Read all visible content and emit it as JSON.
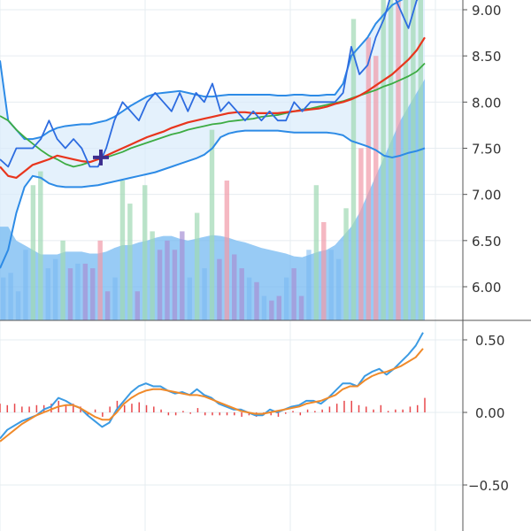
{
  "chart_data": [
    {
      "type": "candlestick-overlay",
      "panel": "price",
      "ylim": [
        5.75,
        9.1
      ],
      "y_ticks": [
        "6.00",
        "6.50",
        "7.00",
        "7.50",
        "8.00",
        "8.50",
        "9.00"
      ],
      "grid": true,
      "price": [
        7.38,
        7.3,
        7.5,
        7.5,
        7.5,
        7.6,
        7.8,
        7.6,
        7.5,
        7.6,
        7.5,
        7.3,
        7.3,
        7.5,
        7.8,
        8.0,
        7.9,
        7.8,
        8.0,
        8.1,
        8.0,
        7.9,
        8.1,
        7.9,
        8.1,
        8.0,
        8.2,
        7.9,
        8.0,
        7.9,
        7.8,
        7.9,
        7.8,
        7.9,
        7.8,
        7.8,
        8.0,
        7.9,
        8.0,
        8.0,
        8.0,
        8.0,
        8.1,
        8.6,
        8.3,
        8.4,
        8.7,
        8.9,
        9.2,
        9.0,
        8.8,
        9.1,
        9.2
      ],
      "ma_slow": [
        7.85,
        7.8,
        7.7,
        7.62,
        7.55,
        7.48,
        7.42,
        7.38,
        7.33,
        7.3,
        7.32,
        7.35,
        7.38,
        7.4,
        7.43,
        7.46,
        7.5,
        7.53,
        7.56,
        7.59,
        7.62,
        7.65,
        7.67,
        7.7,
        7.72,
        7.74,
        7.76,
        7.77,
        7.79,
        7.8,
        7.81,
        7.82,
        7.84,
        7.85,
        7.86,
        7.88,
        7.9,
        7.92,
        7.93,
        7.95,
        7.97,
        7.99,
        8.01,
        8.04,
        8.07,
        8.1,
        8.13,
        8.17,
        8.2,
        8.24,
        8.28,
        8.33,
        8.42
      ],
      "ma_fast": [
        7.3,
        7.2,
        7.18,
        7.25,
        7.32,
        7.35,
        7.38,
        7.42,
        7.4,
        7.38,
        7.36,
        7.35,
        7.38,
        7.42,
        7.46,
        7.5,
        7.54,
        7.58,
        7.62,
        7.65,
        7.68,
        7.72,
        7.75,
        7.78,
        7.8,
        7.82,
        7.84,
        7.86,
        7.88,
        7.89,
        7.89,
        7.88,
        7.88,
        7.88,
        7.88,
        7.89,
        7.9,
        7.91,
        7.92,
        7.93,
        7.95,
        7.98,
        8.0,
        8.03,
        8.07,
        8.12,
        8.18,
        8.24,
        8.3,
        8.38,
        8.46,
        8.56,
        8.7
      ],
      "bb_upper": [
        8.45,
        7.8,
        7.7,
        7.6,
        7.6,
        7.62,
        7.68,
        7.72,
        7.74,
        7.75,
        7.76,
        7.76,
        7.78,
        7.8,
        7.84,
        7.9,
        7.96,
        8.01,
        8.06,
        8.09,
        8.1,
        8.11,
        8.12,
        8.1,
        8.08,
        8.06,
        8.06,
        8.07,
        8.08,
        8.08,
        8.08,
        8.08,
        8.08,
        8.08,
        8.07,
        8.07,
        8.08,
        8.08,
        8.07,
        8.07,
        8.08,
        8.08,
        8.2,
        8.5,
        8.6,
        8.7,
        8.85,
        8.95,
        9.05,
        9.1,
        9.15,
        9.2,
        9.22
      ],
      "bb_lower": [
        6.2,
        6.4,
        6.8,
        7.08,
        7.2,
        7.18,
        7.12,
        7.09,
        7.08,
        7.08,
        7.08,
        7.09,
        7.1,
        7.12,
        7.14,
        7.16,
        7.18,
        7.2,
        7.22,
        7.24,
        7.27,
        7.3,
        7.33,
        7.36,
        7.39,
        7.43,
        7.5,
        7.62,
        7.66,
        7.68,
        7.69,
        7.69,
        7.69,
        7.69,
        7.69,
        7.68,
        7.67,
        7.67,
        7.67,
        7.67,
        7.67,
        7.66,
        7.64,
        7.58,
        7.55,
        7.52,
        7.48,
        7.42,
        7.4,
        7.42,
        7.45,
        7.47,
        7.5
      ],
      "bb_lower_extra": [
        7.36
      ],
      "volume_area_top": [
        6.65,
        6.65,
        6.5,
        6.45,
        6.4,
        6.35,
        6.35,
        6.35,
        6.38,
        6.38,
        6.38,
        6.36,
        6.36,
        6.38,
        6.42,
        6.45,
        6.45,
        6.48,
        6.5,
        6.53,
        6.55,
        6.55,
        6.52,
        6.5,
        6.52,
        6.54,
        6.56,
        6.55,
        6.53,
        6.5,
        6.48,
        6.45,
        6.42,
        6.4,
        6.38,
        6.36,
        6.33,
        6.32,
        6.35,
        6.38,
        6.4,
        6.45,
        6.55,
        6.65,
        6.8,
        7.0,
        7.2,
        7.4,
        7.6,
        7.8,
        7.95,
        8.1,
        8.25
      ],
      "volume_bars": [
        {
          "v": 6.1,
          "c": "b"
        },
        {
          "v": 6.15,
          "c": "b"
        },
        {
          "v": 5.95,
          "c": "b"
        },
        {
          "v": 6.4,
          "c": "b"
        },
        {
          "v": 7.1,
          "c": "g"
        },
        {
          "v": 7.25,
          "c": "g"
        },
        {
          "v": 6.2,
          "c": "b"
        },
        {
          "v": 6.3,
          "c": "b"
        },
        {
          "v": 6.5,
          "c": "g"
        },
        {
          "v": 6.2,
          "c": "p"
        },
        {
          "v": 6.25,
          "c": "b"
        },
        {
          "v": 6.25,
          "c": "p"
        },
        {
          "v": 6.2,
          "c": "p"
        },
        {
          "v": 6.5,
          "c": "r"
        },
        {
          "v": 5.95,
          "c": "p"
        },
        {
          "v": 6.1,
          "c": "b"
        },
        {
          "v": 7.15,
          "c": "g"
        },
        {
          "v": 6.9,
          "c": "g"
        },
        {
          "v": 5.95,
          "c": "p"
        },
        {
          "v": 7.1,
          "c": "g"
        },
        {
          "v": 6.6,
          "c": "g"
        },
        {
          "v": 6.4,
          "c": "p"
        },
        {
          "v": 6.5,
          "c": "p"
        },
        {
          "v": 6.4,
          "c": "p"
        },
        {
          "v": 6.6,
          "c": "p"
        },
        {
          "v": 6.1,
          "c": "b"
        },
        {
          "v": 6.8,
          "c": "g"
        },
        {
          "v": 6.2,
          "c": "b"
        },
        {
          "v": 7.7,
          "c": "g"
        },
        {
          "v": 6.3,
          "c": "p"
        },
        {
          "v": 7.15,
          "c": "r"
        },
        {
          "v": 6.35,
          "c": "p"
        },
        {
          "v": 6.2,
          "c": "p"
        },
        {
          "v": 6.1,
          "c": "b"
        },
        {
          "v": 6.05,
          "c": "p"
        },
        {
          "v": 5.9,
          "c": "b"
        },
        {
          "v": 5.85,
          "c": "p"
        },
        {
          "v": 5.9,
          "c": "p"
        },
        {
          "v": 6.1,
          "c": "b"
        },
        {
          "v": 6.2,
          "c": "p"
        },
        {
          "v": 5.9,
          "c": "p"
        },
        {
          "v": 6.4,
          "c": "b"
        },
        {
          "v": 7.1,
          "c": "g"
        },
        {
          "v": 6.7,
          "c": "r"
        },
        {
          "v": 6.4,
          "c": "b"
        },
        {
          "v": 6.3,
          "c": "b"
        },
        {
          "v": 6.85,
          "c": "g"
        },
        {
          "v": 8.9,
          "c": "g"
        },
        {
          "v": 7.5,
          "c": "r"
        },
        {
          "v": 8.7,
          "c": "r"
        },
        {
          "v": 8.5,
          "c": "r"
        },
        {
          "v": 9.3,
          "c": "g"
        },
        {
          "v": 9.3,
          "c": "g"
        },
        {
          "v": 9.3,
          "c": "r"
        },
        {
          "v": 9.3,
          "c": "g"
        },
        {
          "v": 9.3,
          "c": "g"
        },
        {
          "v": 9.3,
          "c": "g"
        }
      ],
      "marker_cross": {
        "x_index": 13,
        "y": 7.4
      }
    },
    {
      "type": "line",
      "panel": "indicator",
      "ylim": [
        -0.72,
        0.62
      ],
      "y_ticks": [
        "0.50",
        "0.00",
        "−0.50"
      ],
      "grid": true,
      "series": [
        {
          "values": [
            -0.18,
            -0.12,
            -0.09,
            -0.06,
            -0.04,
            -0.02,
            0.02,
            0.04,
            0.1,
            0.08,
            0.05,
            0.03,
            -0.02,
            -0.06,
            -0.1,
            -0.07,
            0.02,
            0.08,
            0.14,
            0.18,
            0.2,
            0.18,
            0.18,
            0.15,
            0.13,
            0.14,
            0.12,
            0.16,
            0.12,
            0.1,
            0.06,
            0.04,
            0.02,
            0.02,
            0.0,
            -0.02,
            -0.02,
            0.02,
            0.0,
            0.02,
            0.04,
            0.05,
            0.08,
            0.08,
            0.06,
            0.1,
            0.15,
            0.2,
            0.2,
            0.18,
            0.25,
            0.28,
            0.3,
            0.26,
            0.3,
            0.35,
            0.4,
            0.46,
            0.55
          ]
        },
        {
          "values": [
            -0.2,
            -0.16,
            -0.12,
            -0.08,
            -0.05,
            -0.02,
            0.0,
            0.02,
            0.04,
            0.05,
            0.05,
            0.03,
            0.0,
            -0.03,
            -0.05,
            -0.05,
            0.0,
            0.06,
            0.1,
            0.13,
            0.15,
            0.16,
            0.16,
            0.15,
            0.14,
            0.13,
            0.12,
            0.12,
            0.11,
            0.09,
            0.07,
            0.05,
            0.03,
            0.01,
            0.0,
            -0.01,
            -0.01,
            0.0,
            0.01,
            0.02,
            0.03,
            0.04,
            0.06,
            0.07,
            0.08,
            0.1,
            0.12,
            0.16,
            0.18,
            0.18,
            0.22,
            0.25,
            0.27,
            0.28,
            0.3,
            0.32,
            0.35,
            0.38,
            0.44
          ]
        }
      ],
      "histogram": [
        0.06,
        0.05,
        0.06,
        0.04,
        0.04,
        0.05,
        0.05,
        0.06,
        0.08,
        0.05,
        0.06,
        0.04,
        -0.02,
        0.02,
        -0.03,
        0.04,
        0.08,
        0.05,
        0.06,
        0.07,
        0.05,
        0.04,
        0.02,
        -0.02,
        -0.02,
        0.01,
        -0.01,
        0.03,
        -0.02,
        -0.02,
        -0.02,
        -0.02,
        -0.02,
        -0.03,
        -0.02,
        -0.03,
        -0.02,
        -0.02,
        -0.03,
        -0.01,
        0.01,
        -0.02,
        0.02,
        0.01,
        0.02,
        0.04,
        0.06,
        0.08,
        0.08,
        0.05,
        0.04,
        0.02,
        0.05,
        0.01,
        0.02,
        0.02,
        0.04,
        0.05,
        0.1
      ]
    }
  ],
  "colors": {
    "fast_ma": "#e8351d",
    "slow_ma": "#3dac43",
    "price_line": "#2d6ce0",
    "bb_line": "#2d8be6",
    "bb_fill": "#d8ebfb",
    "volume_area": "#76b9f2",
    "vol_green": "#9fd8b4",
    "vol_red": "#f19aa8",
    "vol_blue": "#79b8f0",
    "vol_purple": "#a790d4",
    "osc_blue": "#3c9be3",
    "osc_orange": "#f08a2a",
    "osc_hist": "#e8484c",
    "grid": "#e6ecf0",
    "axis": "#555555",
    "marker": "#3d2f8f"
  }
}
